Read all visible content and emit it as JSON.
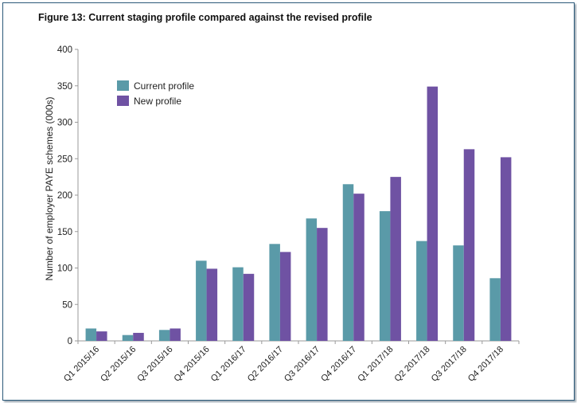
{
  "title": "Figure 13: Current staging profile compared against the revised profile",
  "chart_data": {
    "type": "bar",
    "title": "Figure 13: Current staging profile compared against the revised profile",
    "xlabel": "",
    "ylabel": "Number of employer PAYE schemes (000s)",
    "ylim": [
      0,
      400
    ],
    "yticks": [
      0,
      50,
      100,
      150,
      200,
      250,
      300,
      350,
      400
    ],
    "grid": false,
    "legend_position": "top-left",
    "categories": [
      "Q1 2015/16",
      "Q2 2015/16",
      "Q3 2015/16",
      "Q4 2015/16",
      "Q1 2016/17",
      "Q2 2016/17",
      "Q3 2016/17",
      "Q4 2016/17",
      "Q1 2017/18",
      "Q2 2017/18",
      "Q3 2017/18",
      "Q4 2017/18"
    ],
    "series": [
      {
        "name": "Current profile",
        "color": "#5a9aa8",
        "values": [
          17,
          8,
          15,
          110,
          101,
          133,
          168,
          215,
          178,
          137,
          131,
          86
        ]
      },
      {
        "name": "New profile",
        "color": "#6f52a3",
        "values": [
          13,
          11,
          17,
          99,
          92,
          122,
          155,
          202,
          225,
          349,
          263,
          252
        ]
      }
    ]
  }
}
